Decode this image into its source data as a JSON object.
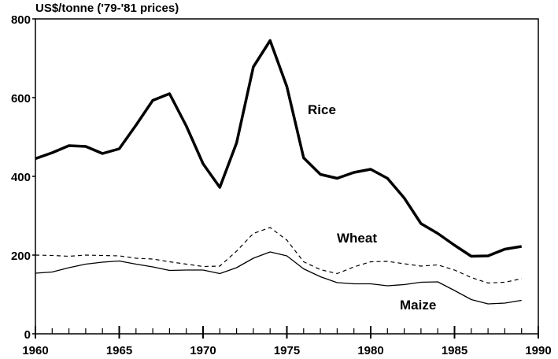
{
  "chart_data": {
    "type": "line",
    "title": "",
    "ylabel": "US$/tonne ('79-'81 prices)",
    "xlabel": "",
    "xlim": [
      1960,
      1990
    ],
    "ylim": [
      0,
      800
    ],
    "xticks": [
      1960,
      1965,
      1970,
      1975,
      1980,
      1985,
      1990
    ],
    "yticks": [
      0,
      200,
      400,
      600,
      800
    ],
    "grid": false,
    "x": [
      1960,
      1961,
      1962,
      1963,
      1964,
      1965,
      1966,
      1967,
      1968,
      1969,
      1970,
      1971,
      1972,
      1973,
      1974,
      1975,
      1976,
      1977,
      1978,
      1979,
      1980,
      1981,
      1982,
      1983,
      1984,
      1985,
      1986,
      1987,
      1988,
      1989
    ],
    "series": [
      {
        "name": "Rice",
        "style": "thick-solid",
        "values": [
          445,
          460,
          478,
          476,
          458,
          470,
          530,
          593,
          610,
          528,
          432,
          372,
          485,
          678,
          745,
          628,
          447,
          405,
          395,
          410,
          418,
          395,
          345,
          280,
          255,
          225,
          197,
          198,
          215,
          222
        ]
      },
      {
        "name": "Wheat",
        "style": "dashed",
        "values": [
          200,
          199,
          197,
          200,
          199,
          198,
          192,
          190,
          183,
          177,
          171,
          172,
          210,
          255,
          270,
          238,
          183,
          163,
          153,
          170,
          183,
          184,
          178,
          172,
          175,
          162,
          143,
          129,
          131,
          140
        ]
      },
      {
        "name": "Maize",
        "style": "thin-solid",
        "values": [
          154,
          157,
          168,
          177,
          182,
          185,
          177,
          170,
          161,
          162,
          162,
          153,
          168,
          192,
          208,
          198,
          165,
          145,
          130,
          127,
          127,
          122,
          125,
          131,
          132,
          110,
          87,
          76,
          78,
          85
        ]
      }
    ]
  }
}
